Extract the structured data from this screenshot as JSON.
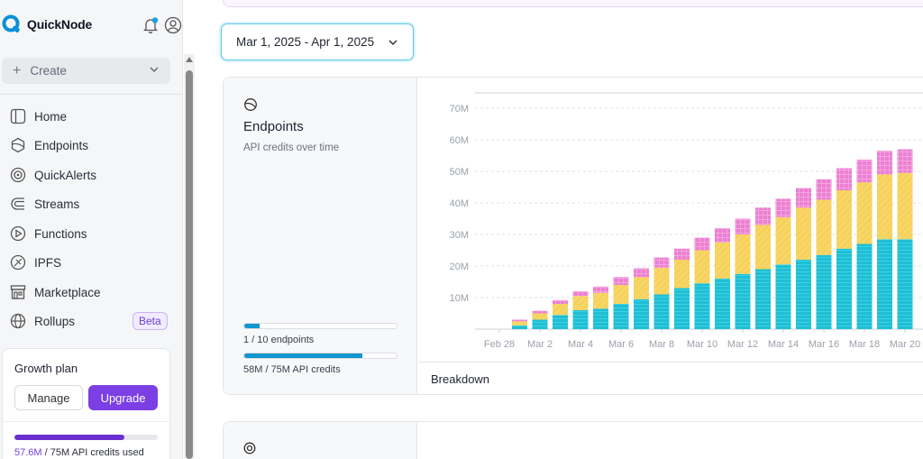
{
  "app": {
    "name": "QuickNode"
  },
  "sidebar": {
    "create_label": "Create",
    "items": [
      {
        "label": "Home",
        "icon": "home-icon"
      },
      {
        "label": "Endpoints",
        "icon": "endpoints-icon"
      },
      {
        "label": "QuickAlerts",
        "icon": "quickalerts-icon"
      },
      {
        "label": "Streams",
        "icon": "streams-icon"
      },
      {
        "label": "Functions",
        "icon": "functions-icon"
      },
      {
        "label": "IPFS",
        "icon": "ipfs-icon"
      },
      {
        "label": "Marketplace",
        "icon": "marketplace-icon"
      },
      {
        "label": "Rollups",
        "icon": "rollups-icon"
      }
    ],
    "rollups_badge": "Beta",
    "plan": {
      "title": "Growth plan",
      "manage_label": "Manage",
      "upgrade_label": "Upgrade",
      "credits_used": "57.6M",
      "credits_rest": " / 75M API credits used",
      "credits_fraction": 0.768
    }
  },
  "main": {
    "date_range": "Mar 1, 2025 - Apr 1, 2025",
    "endpoints_card": {
      "title": "Endpoints",
      "subtitle": "API credits over time",
      "endpoints_usage": "1 / 10 endpoints",
      "endpoints_fraction": 0.1,
      "credits_usage": "58M / 75M API credits",
      "credits_fraction": 0.773,
      "breakdown_label": "Breakdown"
    }
  },
  "colors": {
    "accent": "#7b3fe4",
    "teal": "#1fbfd4",
    "yellow": "#f7d666",
    "pink": "#ec7fd2",
    "progress": "#1196cf"
  },
  "chart_data": {
    "type": "bar",
    "stacked": true,
    "y_tick_labels": [
      "10M",
      "20M",
      "30M",
      "40M",
      "50M",
      "60M",
      "70M"
    ],
    "y_ticks": [
      10,
      20,
      30,
      40,
      50,
      60,
      70
    ],
    "ylim": [
      0,
      75
    ],
    "x_tick_labels": [
      "Feb 28",
      "Mar 2",
      "Mar 4",
      "Mar 6",
      "Mar 8",
      "Mar 10",
      "Mar 12",
      "Mar 14",
      "Mar 16",
      "Mar 18",
      "Mar 20"
    ],
    "categories": [
      "Mar 1",
      "Mar 2",
      "Mar 3",
      "Mar 4",
      "Mar 5",
      "Mar 6",
      "Mar 7",
      "Mar 8",
      "Mar 9",
      "Mar 10",
      "Mar 11",
      "Mar 12",
      "Mar 13",
      "Mar 14",
      "Mar 15",
      "Mar 16",
      "Mar 17",
      "Mar 18",
      "Mar 19",
      "Mar 20"
    ],
    "series": [
      {
        "values": [
          1.2,
          3.0,
          4.5,
          6.0,
          6.5,
          8.0,
          9.5,
          11.0,
          13.0,
          14.5,
          16.0,
          17.5,
          19.0,
          20.5,
          22.0,
          23.5,
          25.5,
          27.0,
          28.5,
          28.5
        ]
      },
      {
        "values": [
          1.3,
          2.0,
          3.5,
          4.5,
          5.0,
          6.0,
          7.0,
          8.5,
          9.0,
          10.5,
          11.5,
          12.5,
          14.0,
          15.0,
          16.5,
          17.5,
          18.5,
          19.5,
          20.5,
          21.0
        ]
      },
      {
        "values": [
          0.5,
          0.8,
          1.2,
          1.5,
          2.0,
          2.5,
          2.8,
          3.2,
          3.5,
          4.0,
          4.5,
          5.0,
          5.5,
          5.8,
          6.2,
          6.5,
          7.0,
          7.2,
          7.5,
          7.5
        ]
      }
    ],
    "grid": true,
    "legend": "none"
  }
}
